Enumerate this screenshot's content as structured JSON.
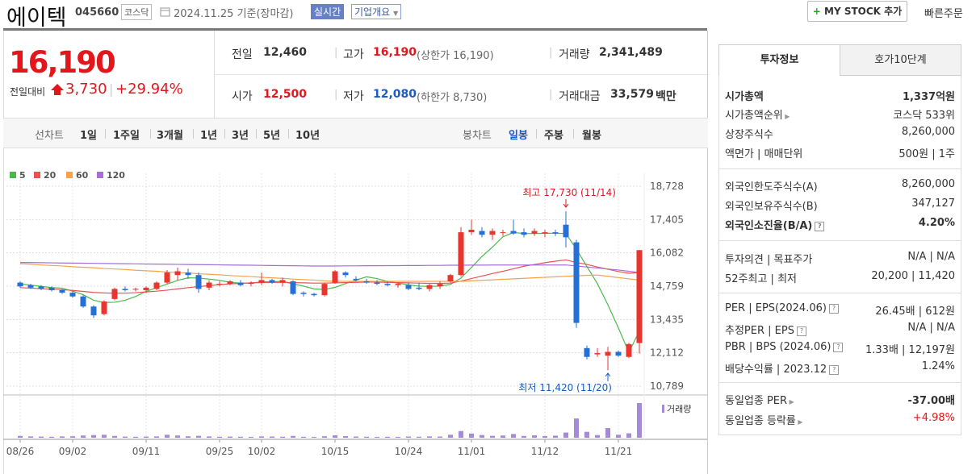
{
  "header": {
    "name": "에이텍",
    "code": "045660",
    "market": "코스닥",
    "date": "2024.11.25 기준(장마감)",
    "realtime": "실시간",
    "overview": "기업개요",
    "mystock": "MY STOCK 추가",
    "quick_order": "빠른주문"
  },
  "quote": {
    "price": "16,190",
    "change_label": "전일대비",
    "change": "3,730",
    "change_pct": "+29.94%",
    "rows": [
      [
        {
          "label": "전일",
          "value": "12,460"
        },
        {
          "label": "고가",
          "value": "16,190",
          "note": "(상한가 16,190)"
        },
        {
          "label": "거래량",
          "value": "2,341,489"
        }
      ],
      [
        {
          "label": "시가",
          "value": "12,500"
        },
        {
          "label": "저가",
          "value": "12,080",
          "note": "(하한가 8,730)"
        },
        {
          "label": "거래대금",
          "value": "33,579",
          "unit": "백만"
        }
      ]
    ]
  },
  "chart_tabs": {
    "line_label": "선차트",
    "line_items": [
      "1일",
      "1주일",
      "3개월",
      "1년",
      "3년",
      "5년",
      "10년"
    ],
    "candle_label": "봉차트",
    "candle_items": [
      "일봉",
      "주봉",
      "월봉"
    ]
  },
  "invest_info": {
    "tabs": [
      "투자정보",
      "호가10단계"
    ],
    "groups": [
      [
        {
          "label": "시가총액",
          "value": "1,337억원"
        },
        {
          "label": "시가총액순위",
          "value": "코스닥 533위"
        },
        {
          "label": "상장주식수",
          "value": "8,260,000"
        },
        {
          "label": "액면가 | 매매단위",
          "value": "500원 | 1주"
        }
      ],
      [
        {
          "label": "외국인한도주식수(A)",
          "value": "8,260,000"
        },
        {
          "label": "외국인보유주식수(B)",
          "value": "347,127"
        },
        {
          "label": "외국인소진율(B/A)",
          "value": "4.20%"
        }
      ],
      [
        {
          "label": "투자의견 | 목표주가",
          "value": "N/A | N/A"
        },
        {
          "label": "52주최고 | 최저",
          "value": "20,200 | 11,420"
        }
      ],
      [
        {
          "label": "PER | EPS(2024.06)",
          "value": "26.45배 | 612원"
        },
        {
          "label": "추정PER | EPS",
          "value": "N/A | N/A"
        },
        {
          "label": "PBR | BPS (2024.06)",
          "value": "1.33배 | 12,197원"
        },
        {
          "label": "배당수익률 | 2023.12",
          "value": "1.24%"
        }
      ],
      [
        {
          "label": "동일업종 PER",
          "value": "-37.00배"
        },
        {
          "label": "동일업종 등락률",
          "value": "+4.98%"
        }
      ]
    ]
  },
  "chart_data": {
    "type": "candlestick",
    "categories": [
      "08/26",
      null,
      null,
      null,
      null,
      "09/02",
      null,
      null,
      null,
      null,
      null,
      null,
      "09/11",
      null,
      null,
      null,
      null,
      null,
      null,
      "09/25",
      null,
      null,
      null,
      "10/02",
      null,
      null,
      null,
      null,
      null,
      null,
      "10/15",
      null,
      null,
      null,
      null,
      null,
      null,
      "10/24",
      null,
      null,
      null,
      null,
      null,
      "11/01",
      null,
      null,
      null,
      null,
      null,
      null,
      "11/12",
      null,
      null,
      null,
      null,
      null,
      null,
      "11/21",
      null,
      null
    ],
    "ohlc": [
      [
        14900,
        14950,
        14700,
        14750
      ],
      [
        14800,
        14850,
        14650,
        14700
      ],
      [
        14750,
        14800,
        14600,
        14650
      ],
      [
        14700,
        14750,
        14550,
        14600
      ],
      [
        14600,
        14650,
        14450,
        14500
      ],
      [
        14500,
        14550,
        14300,
        14350
      ],
      [
        14350,
        14400,
        13900,
        13950
      ],
      [
        13950,
        14000,
        13500,
        13600
      ],
      [
        13650,
        14200,
        13600,
        14150
      ],
      [
        14250,
        14700,
        14200,
        14650
      ],
      [
        14650,
        14750,
        14550,
        14600
      ],
      [
        14650,
        14700,
        14550,
        14650
      ],
      [
        14600,
        14750,
        14500,
        14700
      ],
      [
        14650,
        14950,
        14600,
        14900
      ],
      [
        14900,
        15400,
        14850,
        15300
      ],
      [
        15200,
        15500,
        15000,
        15350
      ],
      [
        15300,
        15450,
        15050,
        15200
      ],
      [
        15200,
        15300,
        14500,
        14650
      ],
      [
        14700,
        15000,
        14600,
        14900
      ],
      [
        14850,
        14950,
        14750,
        14850
      ],
      [
        14850,
        15000,
        14800,
        14950
      ],
      [
        14900,
        15000,
        14750,
        14800
      ],
      [
        14850,
        14950,
        14750,
        14900
      ],
      [
        14900,
        15300,
        14800,
        15000
      ],
      [
        15000,
        15050,
        14850,
        14900
      ],
      [
        14900,
        15100,
        14750,
        15000
      ],
      [
        14950,
        15000,
        14400,
        14450
      ],
      [
        14500,
        14550,
        14350,
        14450
      ],
      [
        14450,
        14500,
        14350,
        14400
      ],
      [
        14400,
        14900,
        14350,
        14850
      ],
      [
        14900,
        15400,
        14850,
        15350
      ],
      [
        15300,
        15350,
        15100,
        15200
      ],
      [
        15050,
        15150,
        14950,
        15000
      ],
      [
        14950,
        15050,
        14850,
        14900
      ],
      [
        14900,
        15000,
        14800,
        14850
      ],
      [
        14850,
        14950,
        14750,
        14800
      ],
      [
        14800,
        14900,
        14700,
        14850
      ],
      [
        14800,
        14900,
        14600,
        14650
      ],
      [
        14700,
        14900,
        14600,
        14650
      ],
      [
        14650,
        14850,
        14550,
        14800
      ],
      [
        14750,
        14950,
        14650,
        14850
      ],
      [
        14950,
        15250,
        14900,
        15200
      ],
      [
        15200,
        17100,
        15150,
        16900
      ],
      [
        16900,
        17400,
        16800,
        17000
      ],
      [
        16950,
        17100,
        16700,
        16800
      ],
      [
        16800,
        17050,
        16600,
        16950
      ],
      [
        16900,
        17000,
        16750,
        16900
      ],
      [
        16950,
        17400,
        16800,
        16850
      ],
      [
        16900,
        17050,
        16700,
        16800
      ],
      [
        16850,
        17050,
        16750,
        16950
      ],
      [
        16850,
        17000,
        16700,
        16900
      ],
      [
        16900,
        17000,
        16750,
        16850
      ],
      [
        17200,
        17730,
        16300,
        16700
      ],
      [
        16500,
        16600,
        13100,
        13300
      ],
      [
        12300,
        12400,
        11850,
        11950
      ],
      [
        12050,
        12300,
        11950,
        12100
      ],
      [
        12000,
        12350,
        11420,
        12150
      ],
      [
        12150,
        12200,
        11950,
        12000
      ],
      [
        11950,
        12500,
        11900,
        12460
      ],
      [
        12500,
        16190,
        12080,
        16190
      ]
    ],
    "up_color": "#e8352e",
    "down_color": "#2470d6",
    "series": [
      {
        "name": "5",
        "color": "#4cb84c",
        "values": [
          14850,
          14800,
          14750,
          14700,
          14680,
          14560,
          14420,
          14200,
          14110,
          14120,
          14200,
          14350,
          14550,
          14700,
          14840,
          14990,
          15090,
          15080,
          15040,
          14990,
          14910,
          14880,
          14880,
          14930,
          14930,
          14950,
          14850,
          14760,
          14650,
          14630,
          14710,
          14860,
          15000,
          15130,
          15060,
          14950,
          14880,
          14810,
          14760,
          14750,
          14760,
          14830,
          15080,
          15500,
          15940,
          16310,
          16720,
          16890,
          16850,
          16850,
          16860,
          16860,
          16850,
          16230,
          15540,
          14860,
          14020,
          13100,
          12130,
          12980
        ]
      },
      {
        "name": "20",
        "color": "#e8524f",
        "values": [
          14700,
          14680,
          14660,
          14640,
          14620,
          14590,
          14550,
          14510,
          14490,
          14480,
          14480,
          14500,
          14530,
          14560,
          14600,
          14650,
          14700,
          14740,
          14780,
          14820,
          14850,
          14870,
          14890,
          14900,
          14910,
          14910,
          14900,
          14890,
          14880,
          14880,
          14890,
          14900,
          14910,
          14920,
          14920,
          14910,
          14900,
          14890,
          14880,
          14870,
          14870,
          14880,
          14960,
          15060,
          15160,
          15260,
          15350,
          15450,
          15550,
          15620,
          15690,
          15750,
          15800,
          15700,
          15620,
          15520,
          15430,
          15340,
          15270,
          15300
        ]
      },
      {
        "name": "60",
        "color": "#f5a24b",
        "values": [
          15650,
          15630,
          15600,
          15580,
          15560,
          15530,
          15510,
          15490,
          15460,
          15440,
          15420,
          15390,
          15370,
          15350,
          15320,
          15300,
          15280,
          15250,
          15230,
          15210,
          15180,
          15160,
          15140,
          15110,
          15090,
          15070,
          15040,
          15020,
          15000,
          14970,
          14950,
          14950,
          14950,
          14950,
          14950,
          14950,
          14950,
          14950,
          14950,
          14950,
          14950,
          14950,
          14950,
          14970,
          14990,
          15010,
          15030,
          15050,
          15070,
          15090,
          15110,
          15130,
          15150,
          15170,
          15190,
          15200,
          15150,
          15100,
          15050,
          15000
        ]
      },
      {
        "name": "120",
        "color": "#a56fd6",
        "values": [
          15700,
          15695,
          15690,
          15685,
          15680,
          15675,
          15670,
          15665,
          15660,
          15655,
          15650,
          15645,
          15640,
          15635,
          15630,
          15625,
          15620,
          15615,
          15610,
          15605,
          15600,
          15595,
          15590,
          15585,
          15580,
          15575,
          15570,
          15565,
          15560,
          15560,
          15560,
          15565,
          15565,
          15570,
          15570,
          15575,
          15575,
          15580,
          15580,
          15585,
          15585,
          15590,
          15590,
          15595,
          15595,
          15600,
          15600,
          15600,
          15600,
          15600,
          15600,
          15600,
          15600,
          15560,
          15520,
          15480,
          15440,
          15400,
          15350,
          15300
        ]
      }
    ],
    "volume": {
      "name": "거래량",
      "color": "#a58ad8",
      "values": [
        120000,
        90000,
        80000,
        70000,
        90000,
        100000,
        150000,
        180000,
        200000,
        120000,
        80000,
        70000,
        80000,
        90000,
        200000,
        150000,
        100000,
        130000,
        90000,
        70000,
        80000,
        70000,
        60000,
        90000,
        80000,
        70000,
        120000,
        70000,
        60000,
        100000,
        160000,
        110000,
        80000,
        70000,
        60000,
        70000,
        60000,
        80000,
        70000,
        90000,
        80000,
        200000,
        450000,
        280000,
        180000,
        130000,
        150000,
        250000,
        120000,
        160000,
        110000,
        140000,
        350000,
        1300000,
        400000,
        180000,
        650000,
        200000,
        300000,
        2341489
      ]
    },
    "ylim": [
      10789,
      18728
    ],
    "yticks": [
      {
        "value": 18728,
        "label": "18,728"
      },
      {
        "value": 17405,
        "label": "17,405"
      },
      {
        "value": 16082,
        "label": "16,082"
      },
      {
        "value": 14759,
        "label": "14,759"
      },
      {
        "value": 13435,
        "label": "13,435"
      },
      {
        "value": 12112,
        "label": "12,112"
      },
      {
        "value": 10789,
        "label": "10,789"
      }
    ],
    "annotations": [
      "최고 17,730 (11/14)",
      "최저 11,420 (11/20)"
    ],
    "grid": true
  }
}
